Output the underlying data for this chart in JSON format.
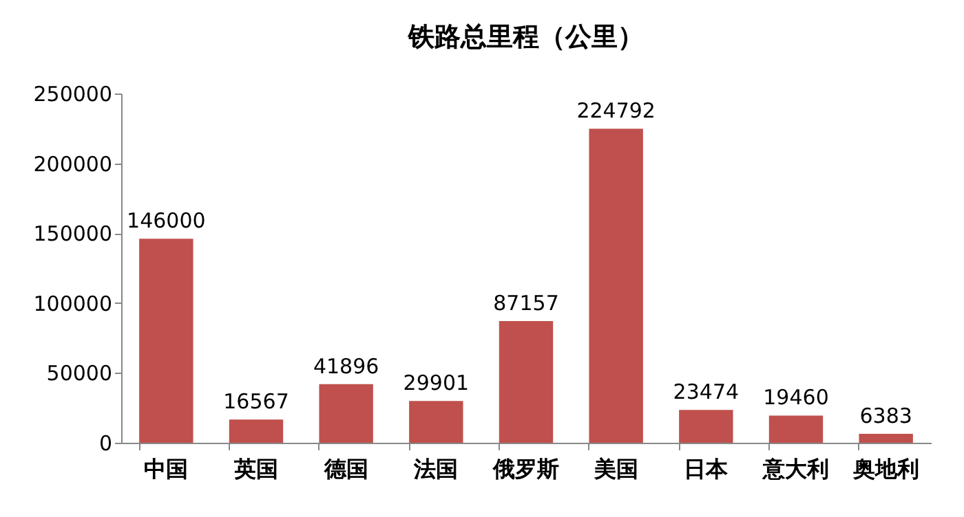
{
  "chart_data": {
    "type": "bar",
    "title": "铁路总里程（公里）",
    "categories": [
      "中国",
      "英国",
      "德国",
      "法国",
      "俄罗斯",
      "美国",
      "日本",
      "意大利",
      "奥地利"
    ],
    "values": [
      146000,
      16567,
      41896,
      29901,
      87157,
      224792,
      23474,
      19460,
      6383
    ],
    "color": "#c0504d",
    "ylim": [
      0,
      250000
    ],
    "yticks": [
      0,
      50000,
      100000,
      150000,
      200000,
      250000
    ],
    "data_labels": true
  }
}
